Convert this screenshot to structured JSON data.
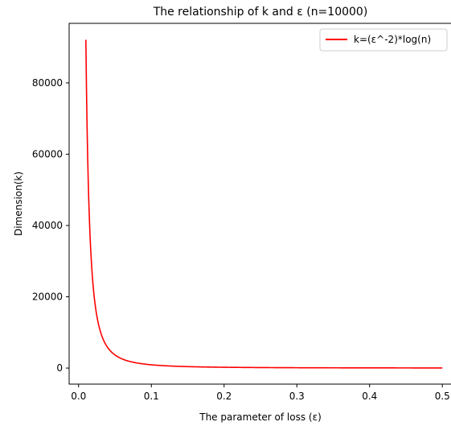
{
  "chart_data": {
    "type": "line",
    "title": "The relationship of k and ε (n=10000)",
    "xlabel": "The parameter of loss (ε)",
    "ylabel": "Dimension(k)",
    "xlim": [
      -0.013,
      0.513
    ],
    "ylim": [
      -4500,
      96700
    ],
    "xticks": [
      {
        "value": 0.0,
        "label": "0.0"
      },
      {
        "value": 0.1,
        "label": "0.1"
      },
      {
        "value": 0.2,
        "label": "0.2"
      },
      {
        "value": 0.3,
        "label": "0.3"
      },
      {
        "value": 0.4,
        "label": "0.4"
      },
      {
        "value": 0.5,
        "label": "0.5"
      }
    ],
    "yticks": [
      {
        "value": 0,
        "label": "0"
      },
      {
        "value": 20000,
        "label": "20000"
      },
      {
        "value": 40000,
        "label": "40000"
      },
      {
        "value": 60000,
        "label": "60000"
      },
      {
        "value": 80000,
        "label": "80000"
      }
    ],
    "grid": false,
    "legend_position": "top-right",
    "series": [
      {
        "name": "k=(ε^-2)*log(n)",
        "color": "#ff0000",
        "function": "log(10000)/x^2",
        "x_range": [
          0.01,
          0.5
        ]
      }
    ]
  }
}
